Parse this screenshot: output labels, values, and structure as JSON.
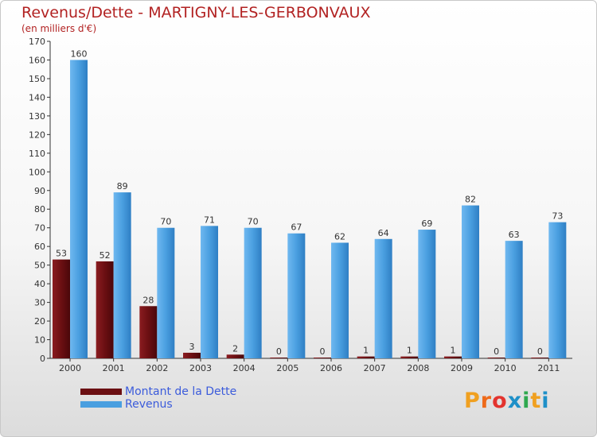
{
  "title": "Revenus/Dette - MARTIGNY-LES-GERBONVAUX",
  "unit_label": "(en milliers d'€)",
  "logo": "Proxiti",
  "colors": {
    "dette": "#6b0f12",
    "revenus": "#4a9fe0",
    "title": "#b22222",
    "legend_text": "#3b5bdb",
    "logo_letters": [
      "#f0a020",
      "#ee6a1a",
      "#e3342f",
      "#1e90c8",
      "#2fa84f",
      "#f0a020",
      "#1e90c8"
    ]
  },
  "chart_data": {
    "type": "bar",
    "title": "Revenus/Dette - MARTIGNY-LES-GERBONVAUX",
    "ylabel": "(en milliers d'€)",
    "xlabel": "",
    "categories": [
      "2000",
      "2001",
      "2002",
      "2003",
      "2004",
      "2005",
      "2006",
      "2007",
      "2008",
      "2009",
      "2010",
      "2011"
    ],
    "series": [
      {
        "name": "Montant de la Dette",
        "values": [
          53,
          52,
          28,
          3,
          2,
          0,
          0,
          1,
          1,
          1,
          0,
          0
        ]
      },
      {
        "name": "Revenus",
        "values": [
          160,
          89,
          70,
          71,
          70,
          67,
          62,
          64,
          69,
          82,
          63,
          73
        ]
      }
    ],
    "ylim": [
      0,
      170
    ],
    "ytick_step": 10,
    "grid": false,
    "legend_position": "bottom-left"
  }
}
